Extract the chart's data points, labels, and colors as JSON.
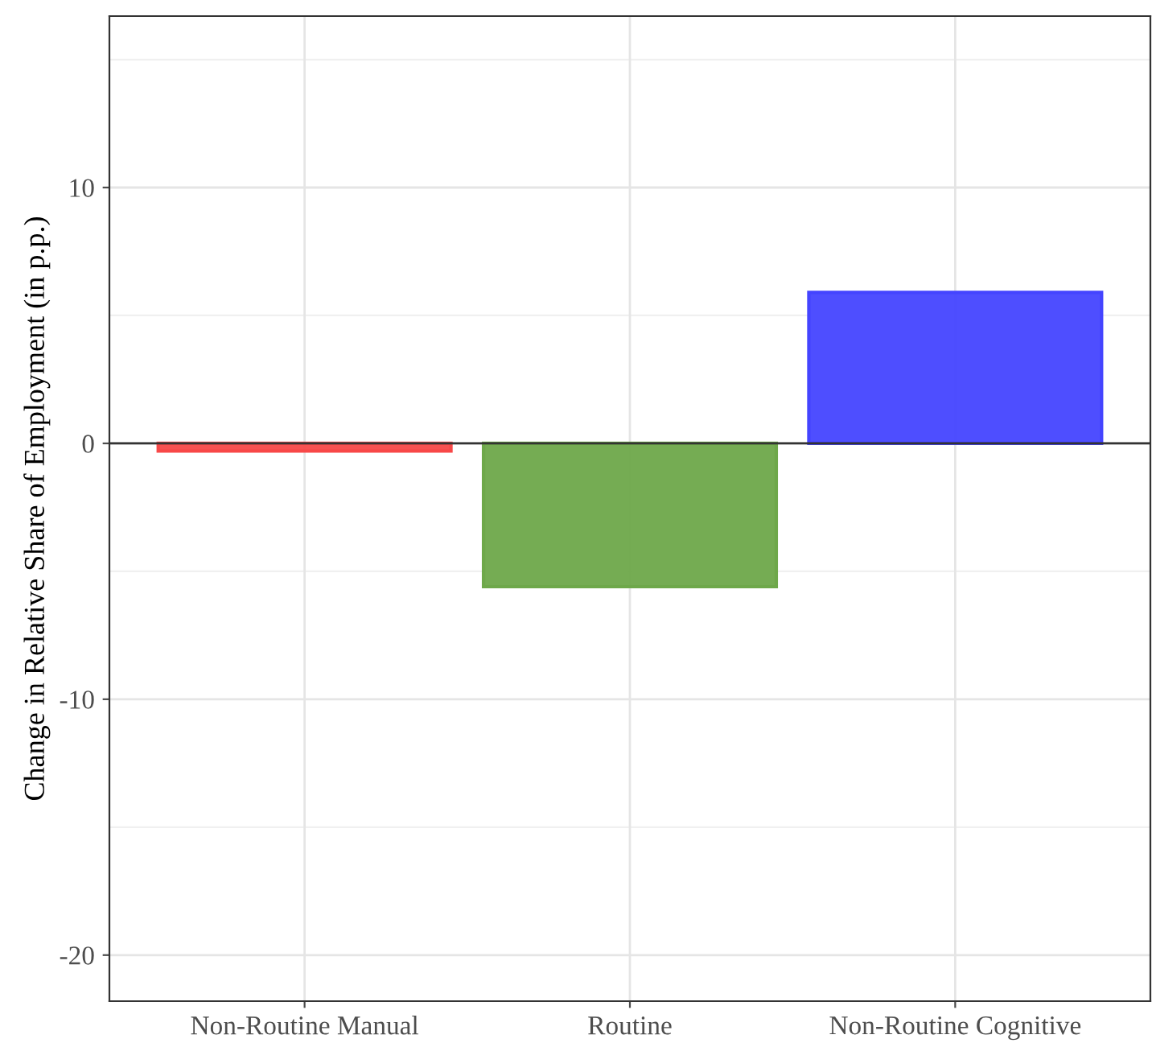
{
  "chart_data": {
    "type": "bar",
    "ylabel": "Change in Relative Share of Employment (in p.p.)",
    "categories": [
      "Non-Routine Manual",
      "Routine",
      "Non-Routine Cognitive"
    ],
    "values": [
      -0.3,
      -5.6,
      5.9
    ],
    "colors": [
      "#f84848",
      "#6ea84a",
      "#4444ff"
    ],
    "ylim": [
      -21.8,
      16.7
    ],
    "yticks": [
      -20,
      -10,
      0,
      10
    ],
    "grid": true,
    "ref_lines": [
      {
        "axis": "y",
        "value": 0,
        "color": "#333333"
      }
    ]
  }
}
